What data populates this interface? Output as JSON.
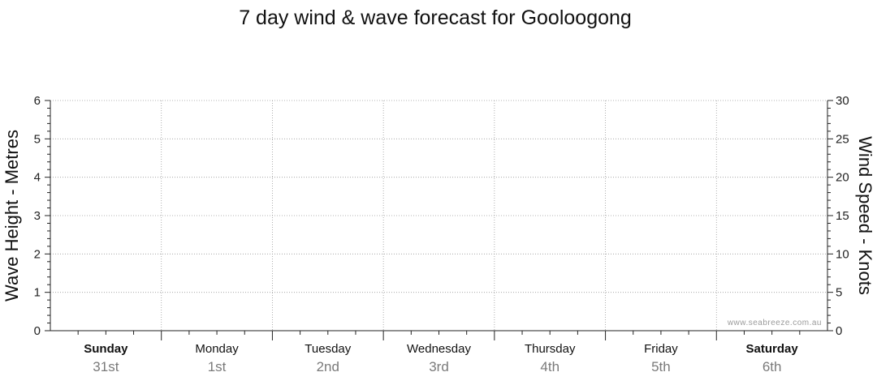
{
  "chart_data": {
    "type": "line",
    "title": "7 day wind & wave forecast for Gooloogong",
    "y_left": {
      "label": "Wave Height - Metres",
      "range": [
        0,
        6
      ],
      "ticks": [
        0,
        1,
        2,
        3,
        4,
        5,
        6
      ]
    },
    "y_right": {
      "label": "Wind Speed - Knots",
      "range": [
        0,
        30
      ],
      "ticks": [
        0,
        5,
        10,
        15,
        20,
        25,
        30
      ]
    },
    "days": [
      {
        "name": "Sunday",
        "date": "31st",
        "bold": true
      },
      {
        "name": "Monday",
        "date": "1st",
        "bold": false
      },
      {
        "name": "Tuesday",
        "date": "2nd",
        "bold": false
      },
      {
        "name": "Wednesday",
        "date": "3rd",
        "bold": false
      },
      {
        "name": "Thursday",
        "date": "4th",
        "bold": false
      },
      {
        "name": "Friday",
        "date": "5th",
        "bold": false
      },
      {
        "name": "Saturday",
        "date": "6th",
        "bold": true
      }
    ],
    "series": [],
    "grid": true,
    "watermark": "www.seabreeze.com.au"
  }
}
